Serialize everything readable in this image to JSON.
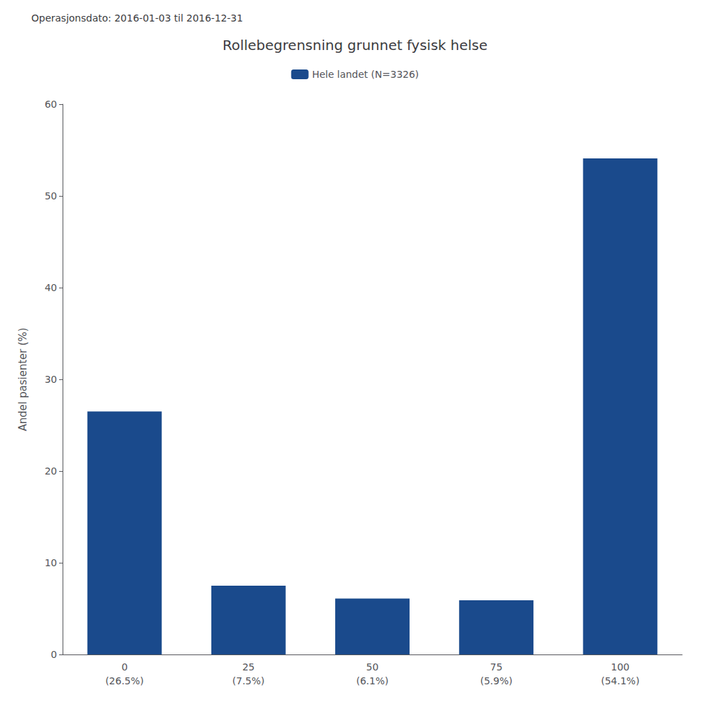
{
  "chart_data": {
    "type": "bar",
    "title": "Rollebegrensning grunnet fysisk helse",
    "subtitle": "Operasjonsdato: 2016-01-03 til 2016-12-31",
    "categories": [
      "0\n(26.5%)",
      "25\n(7.5%)",
      "50\n(6.1%)",
      "75\n(5.9%)",
      "100\n(54.1%)"
    ],
    "series": [
      {
        "name": "Hele landet (N=3326)",
        "color": "#1a4a8c",
        "values": [
          26.5,
          7.5,
          6.1,
          5.9,
          54.1
        ]
      }
    ],
    "ylabel": "Andel pasienter (%)",
    "ylim": [
      0,
      60
    ],
    "yticks": [
      0,
      10,
      20,
      30,
      40,
      50,
      60
    ],
    "grid": false,
    "legend": "top"
  }
}
